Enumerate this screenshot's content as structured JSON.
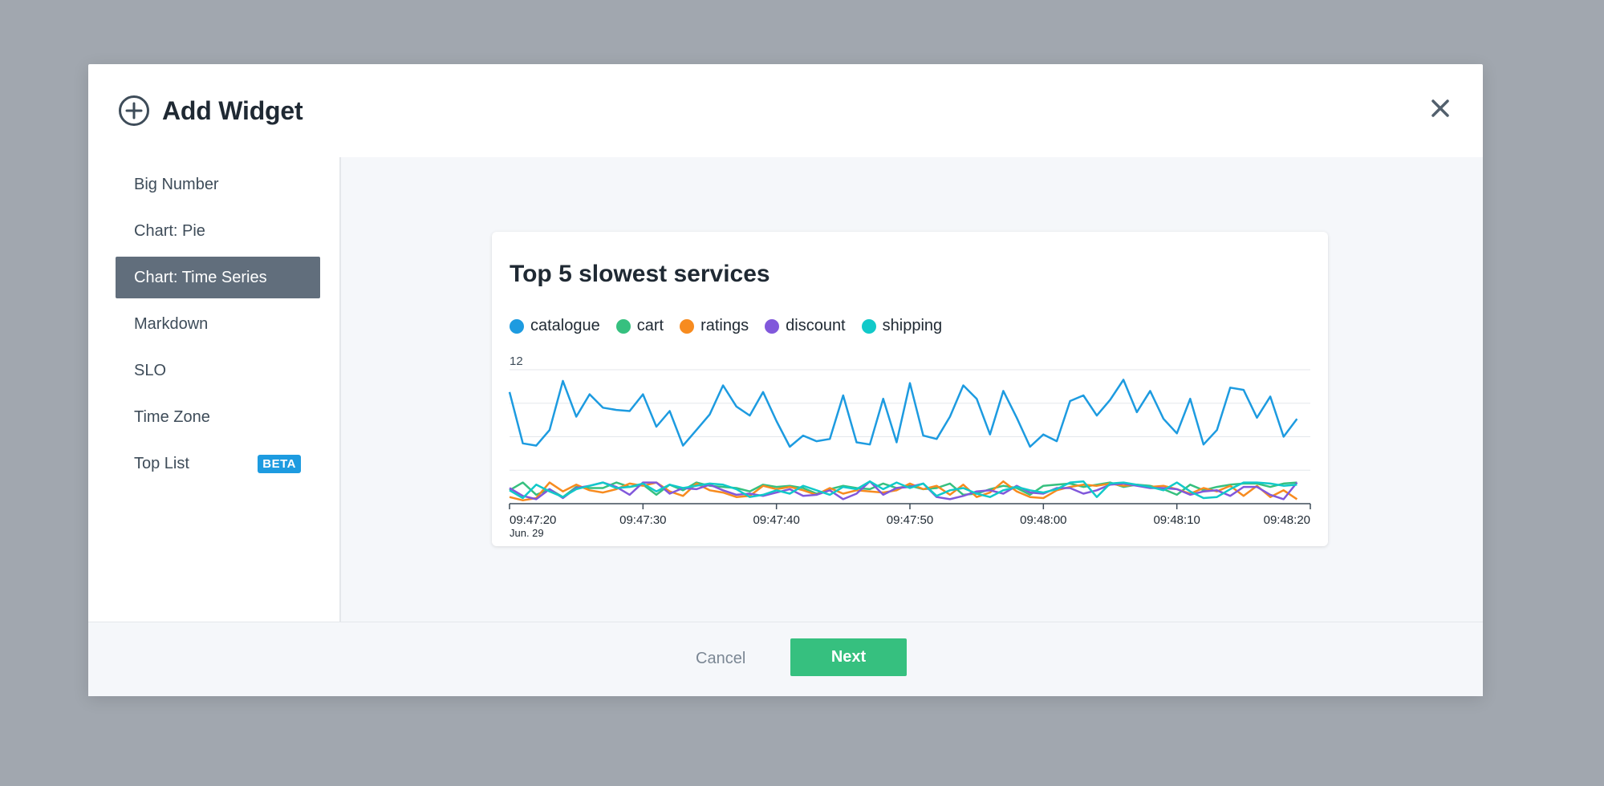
{
  "modal": {
    "title": "Add Widget",
    "plus_icon": "plus-circle-icon",
    "close_icon": "close-icon"
  },
  "sidebar": {
    "items": [
      {
        "label": "Big Number",
        "active": false
      },
      {
        "label": "Chart: Pie",
        "active": false
      },
      {
        "label": "Chart: Time Series",
        "active": true
      },
      {
        "label": "Markdown",
        "active": false
      },
      {
        "label": "SLO",
        "active": false
      },
      {
        "label": "Time Zone",
        "active": false
      },
      {
        "label": "Top List",
        "active": false,
        "badge": "BETA"
      }
    ]
  },
  "footer": {
    "cancel_label": "Cancel",
    "next_label": "Next"
  },
  "colors": {
    "active_bg": "#616e7c",
    "beta_badge": "#1d9be0",
    "next_button": "#36c07f"
  },
  "chart_data": {
    "type": "line",
    "title": "Top 5 slowest services",
    "legend_position": "top-left",
    "grid": true,
    "ylim": [
      0,
      12
    ],
    "y_ticks": [
      "12"
    ],
    "x_ticks": [
      "09:47:20",
      "09:47:30",
      "09:47:40",
      "09:47:50",
      "09:48:00",
      "09:48:10",
      "09:48:20"
    ],
    "x_date_label": "Jun. 29",
    "x_start": "09:47:20",
    "x_end": "09:48:20",
    "series": [
      {
        "name": "catalogue",
        "color": "#1d9be0",
        "values": [
          10,
          5.4,
          5.2,
          6.6,
          11,
          7.8,
          9.8,
          8.6,
          8.4,
          8.3,
          9.8,
          6.9,
          8.3,
          5.2,
          6.6,
          8,
          10.6,
          8.7,
          7.9,
          10,
          7.4,
          5.1,
          6.1,
          5.6,
          5.8,
          9.7,
          5.5,
          5.3,
          9.4,
          5.5,
          10.8,
          6.1,
          5.8,
          7.8,
          10.6,
          9.4,
          6.2,
          10.1,
          7.7,
          5.1,
          6.2,
          5.6,
          9.2,
          9.7,
          7.9,
          9.3,
          11.1,
          8.2,
          10.1,
          7.6,
          6.3,
          9.4,
          5.3,
          6.6,
          10.4,
          10.2,
          7.7,
          9.6,
          6,
          7.6
        ]
      },
      {
        "name": "cart",
        "color": "#36c07f",
        "values": [
          1.2,
          1.9,
          0.8,
          1.3,
          0.6,
          1.5,
          1.4,
          1.4,
          1.9,
          1.5,
          1.7,
          0.8,
          1.7,
          1.2,
          1.9,
          1.6,
          1.5,
          1.4,
          1.1,
          1.7,
          1.5,
          1.6,
          1.4,
          0.9,
          1.3,
          1.6,
          1.4,
          1.3,
          1.8,
          1.4,
          1.6,
          1.3,
          1.4,
          1.8,
          0.8,
          0.9,
          1.3,
          1.6,
          1.4,
          0.8,
          1.6,
          1.7,
          1.8,
          1.5,
          1.7,
          1.9,
          1.5,
          1.7,
          1.6,
          1.3,
          0.8,
          1.7,
          1.2,
          1.5,
          1.7,
          1.8,
          1.8,
          1.5,
          1.8,
          1.9
        ]
      },
      {
        "name": "ratings",
        "color": "#f78b1f",
        "values": [
          0.6,
          0.3,
          0.5,
          1.9,
          1.1,
          1.7,
          1.2,
          1,
          1.3,
          1.8,
          1.6,
          1.9,
          1.1,
          0.7,
          1.8,
          1.2,
          1,
          0.6,
          0.7,
          1.6,
          1.3,
          1.5,
          1.2,
          0.8,
          1.4,
          0.9,
          1.2,
          1.1,
          1,
          1.2,
          1.8,
          1.3,
          1.6,
          0.8,
          1.7,
          0.6,
          1,
          2,
          1.1,
          0.6,
          0.5,
          1.2,
          1.5,
          1.7,
          1.6,
          1.8,
          1.6,
          1.7,
          1.5,
          1.6,
          1.3,
          0.9,
          1.4,
          1.1,
          1.6,
          0.7,
          1.6,
          0.6,
          1.2,
          0.4
        ]
      },
      {
        "name": "discount",
        "color": "#8158db",
        "values": [
          1.4,
          0.7,
          0.4,
          1.3,
          0.5,
          1.4,
          1.6,
          1.9,
          1.5,
          0.8,
          1.9,
          1.9,
          0.9,
          1.4,
          1.3,
          1.7,
          1.2,
          0.8,
          0.9,
          0.7,
          1,
          1.3,
          0.7,
          0.8,
          1.2,
          0.4,
          0.9,
          2,
          0.8,
          1.4,
          1.5,
          1.8,
          0.6,
          0.4,
          0.7,
          1.1,
          1.2,
          0.9,
          1.6,
          1,
          0.9,
          1.4,
          1.4,
          0.9,
          1.2,
          1.7,
          1.8,
          1.6,
          1.4,
          1.4,
          1.3,
          0.8,
          1.1,
          1.2,
          0.7,
          1.5,
          1.5,
          0.8,
          0.4,
          1.9
        ]
      },
      {
        "name": "shipping",
        "color": "#11c9c9",
        "values": [
          1.2,
          0.5,
          1.7,
          1.1,
          0.6,
          1.3,
          1.6,
          1.9,
          1.4,
          1.5,
          1.8,
          1.1,
          1.7,
          1.4,
          1.6,
          1.8,
          1.7,
          1.3,
          0.6,
          0.8,
          1.2,
          0.9,
          1.6,
          1.2,
          0.8,
          1.5,
          1.3,
          2,
          1.3,
          1.9,
          1.4,
          1.8,
          0.7,
          1.2,
          1.4,
          0.9,
          0.6,
          1.2,
          1.5,
          1.2,
          1,
          1.3,
          1.9,
          2,
          0.6,
          1.8,
          1.9,
          1.7,
          1.5,
          1.2,
          1.9,
          1.1,
          0.5,
          0.6,
          1.3,
          1.9,
          1.9,
          1.8,
          1.6,
          1.7
        ]
      }
    ]
  }
}
